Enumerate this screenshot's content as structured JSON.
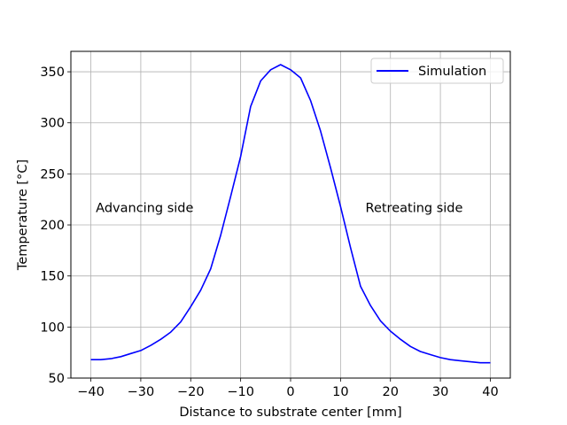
{
  "chart_data": {
    "type": "line",
    "title": "",
    "xlabel": "Distance to substrate center [mm]",
    "ylabel": "Temperature [°C]",
    "xlim": [
      -44,
      44
    ],
    "ylim": [
      50,
      370
    ],
    "xticks": [
      -40,
      -30,
      -20,
      -10,
      0,
      10,
      20,
      30,
      40
    ],
    "yticks": [
      50,
      100,
      150,
      200,
      250,
      300,
      350
    ],
    "xtick_labels": [
      "−40",
      "−30",
      "−20",
      "−10",
      "0",
      "10",
      "20",
      "30",
      "40"
    ],
    "ytick_labels": [
      "50",
      "100",
      "150",
      "200",
      "250",
      "300",
      "350"
    ],
    "grid": true,
    "legend_position": "top-right",
    "series": [
      {
        "name": "Simulation",
        "color": "#0000ff",
        "x": [
          -40,
          -38,
          -36,
          -34,
          -32,
          -30,
          -28,
          -26,
          -24,
          -22,
          -20,
          -18,
          -16,
          -14,
          -12,
          -10,
          -8,
          -6,
          -4,
          -2,
          0,
          2,
          4,
          6,
          8,
          10,
          12,
          14,
          16,
          18,
          20,
          22,
          24,
          26,
          28,
          30,
          32,
          34,
          36,
          38,
          40
        ],
        "y": [
          68,
          68,
          69,
          71,
          74,
          77,
          82,
          88,
          95,
          105,
          120,
          136,
          157,
          190,
          228,
          267,
          316,
          341,
          352,
          357,
          352,
          344,
          322,
          292,
          256,
          218,
          178,
          140,
          121,
          106,
          96,
          88,
          81,
          76,
          73,
          70,
          68,
          67,
          66,
          65,
          65
        ]
      }
    ],
    "annotations": [
      {
        "text": "Advancing side",
        "x": -39,
        "y": 217
      },
      {
        "text": "Retreating side",
        "x": 15,
        "y": 217
      }
    ]
  }
}
